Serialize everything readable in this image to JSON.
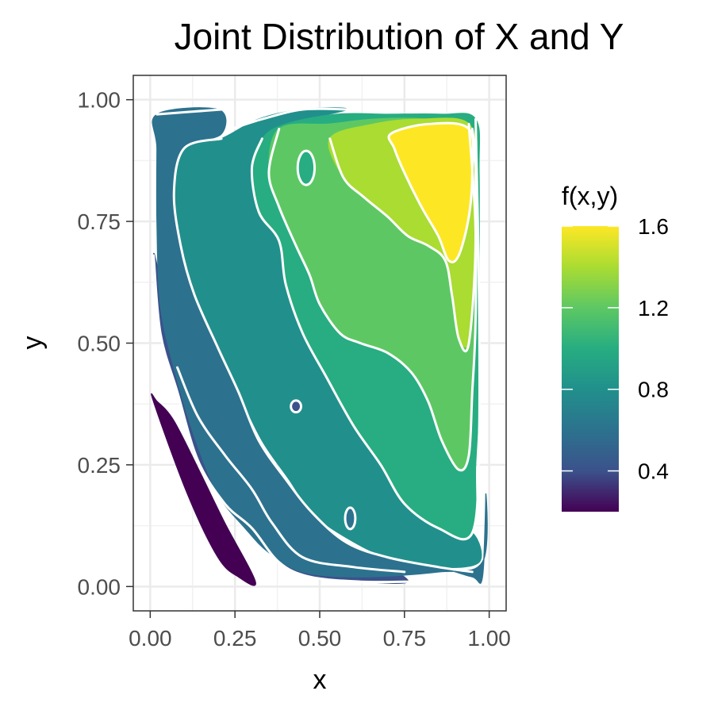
{
  "chart_data": {
    "type": "heatmap",
    "subtype": "filled-contour",
    "title": "Joint Distribution of X and Y",
    "xlabel": "x",
    "ylabel": "y",
    "xlim": [
      -0.05,
      1.05
    ],
    "ylim": [
      -0.05,
      1.05
    ],
    "x_ticks": [
      0.0,
      0.25,
      0.5,
      0.75,
      1.0
    ],
    "x_tick_labels": [
      "0.00",
      "0.25",
      "0.50",
      "0.75",
      "1.00"
    ],
    "y_ticks": [
      0.0,
      0.25,
      0.5,
      0.75,
      1.0
    ],
    "y_tick_labels": [
      "0.00",
      "0.25",
      "0.50",
      "0.75",
      "1.00"
    ],
    "grid": true,
    "theme": "bw",
    "legend": {
      "title": "f(x,y)",
      "placement": "right",
      "range": [
        0.2,
        1.6
      ],
      "ticks": [
        0.4,
        0.8,
        1.2,
        1.6
      ],
      "tick_labels": [
        "0.4",
        "0.8",
        "1.2",
        "1.6"
      ],
      "palette": "viridis"
    },
    "levels": [
      0.2,
      0.4,
      0.6,
      0.8,
      1.0,
      1.2,
      1.4,
      1.6
    ],
    "level_colors": [
      "#440154",
      "#3b528b",
      "#2c728e",
      "#21908c",
      "#27ad81",
      "#5dc863",
      "#aadc32",
      "#fde725"
    ],
    "bands": [
      {
        "level": 0.2,
        "color": "#440154",
        "outline": [
          [
            0.01,
            0.38
          ],
          [
            0.11,
            0.19
          ],
          [
            0.2,
            0.06
          ],
          [
            0.26,
            0.02
          ],
          [
            0.31,
            0.01
          ],
          [
            0.22,
            0.13
          ],
          [
            0.15,
            0.23
          ],
          [
            0.07,
            0.34
          ],
          [
            0.02,
            0.38
          ]
        ]
      },
      {
        "level": 0.4,
        "color": "#3b528b",
        "outline": [
          [
            0.01,
            0.68
          ],
          [
            0.03,
            0.52
          ],
          [
            0.08,
            0.4
          ],
          [
            0.14,
            0.26
          ],
          [
            0.22,
            0.17
          ],
          [
            0.3,
            0.12
          ],
          [
            0.38,
            0.05
          ],
          [
            0.47,
            0.02
          ],
          [
            0.62,
            0.01
          ],
          [
            0.76,
            0.01
          ],
          [
            0.66,
            0.05
          ],
          [
            0.52,
            0.07
          ],
          [
            0.42,
            0.11
          ],
          [
            0.35,
            0.17
          ],
          [
            0.27,
            0.24
          ],
          [
            0.19,
            0.35
          ],
          [
            0.12,
            0.46
          ],
          [
            0.06,
            0.56
          ],
          [
            0.03,
            0.63
          ]
        ]
      },
      {
        "level": 0.6,
        "color": "#2c728e",
        "outline": [
          [
            0.02,
            0.97
          ],
          [
            0.2,
            0.98
          ],
          [
            0.21,
            0.93
          ],
          [
            0.1,
            0.9
          ],
          [
            0.07,
            0.81
          ],
          [
            0.09,
            0.7
          ],
          [
            0.13,
            0.6
          ],
          [
            0.2,
            0.49
          ],
          [
            0.26,
            0.4
          ],
          [
            0.32,
            0.3
          ],
          [
            0.4,
            0.22
          ],
          [
            0.48,
            0.15
          ],
          [
            0.58,
            0.09
          ],
          [
            0.7,
            0.06
          ],
          [
            0.85,
            0.04
          ],
          [
            0.95,
            0.02
          ],
          [
            0.98,
            0.02
          ],
          [
            0.99,
            0.19
          ],
          [
            0.98,
            0.05
          ],
          [
            0.85,
            0.03
          ],
          [
            0.62,
            0.02
          ],
          [
            0.45,
            0.03
          ],
          [
            0.35,
            0.07
          ],
          [
            0.28,
            0.12
          ],
          [
            0.2,
            0.19
          ],
          [
            0.13,
            0.31
          ],
          [
            0.07,
            0.45
          ],
          [
            0.03,
            0.58
          ],
          [
            0.02,
            0.75
          ],
          [
            0.02,
            0.9
          ]
        ]
      },
      {
        "level": 0.8,
        "color": "#21908c",
        "outline": [
          [
            0.21,
            0.92
          ],
          [
            0.32,
            0.96
          ],
          [
            0.45,
            0.98
          ],
          [
            0.58,
            0.98
          ],
          [
            0.4,
            0.95
          ],
          [
            0.33,
            0.92
          ],
          [
            0.3,
            0.86
          ],
          [
            0.32,
            0.77
          ],
          [
            0.38,
            0.71
          ],
          [
            0.4,
            0.62
          ],
          [
            0.45,
            0.52
          ],
          [
            0.52,
            0.43
          ],
          [
            0.6,
            0.33
          ],
          [
            0.68,
            0.25
          ],
          [
            0.75,
            0.17
          ],
          [
            0.85,
            0.12
          ],
          [
            0.95,
            0.11
          ],
          [
            0.97,
            0.05
          ],
          [
            0.85,
            0.04
          ],
          [
            0.7,
            0.06
          ],
          [
            0.58,
            0.1
          ],
          [
            0.48,
            0.15
          ],
          [
            0.41,
            0.22
          ],
          [
            0.33,
            0.3
          ],
          [
            0.26,
            0.4
          ],
          [
            0.2,
            0.49
          ],
          [
            0.13,
            0.6
          ],
          [
            0.09,
            0.7
          ],
          [
            0.07,
            0.81
          ],
          [
            0.1,
            0.9
          ]
        ]
      },
      {
        "level": 1.0,
        "color": "#27ad81",
        "outline": [
          [
            0.33,
            0.92
          ],
          [
            0.4,
            0.95
          ],
          [
            0.55,
            0.97
          ],
          [
            0.7,
            0.97
          ],
          [
            0.86,
            0.97
          ],
          [
            0.96,
            0.96
          ],
          [
            0.97,
            0.85
          ],
          [
            0.97,
            0.6
          ],
          [
            0.97,
            0.4
          ],
          [
            0.96,
            0.25
          ],
          [
            0.95,
            0.11
          ],
          [
            0.85,
            0.12
          ],
          [
            0.75,
            0.17
          ],
          [
            0.68,
            0.25
          ],
          [
            0.6,
            0.33
          ],
          [
            0.52,
            0.43
          ],
          [
            0.45,
            0.52
          ],
          [
            0.4,
            0.62
          ],
          [
            0.38,
            0.71
          ],
          [
            0.32,
            0.77
          ],
          [
            0.3,
            0.86
          ]
        ]
      },
      {
        "level": 1.2,
        "color": "#5dc863",
        "outline": [
          [
            0.38,
            0.94
          ],
          [
            0.53,
            0.95
          ],
          [
            0.66,
            0.96
          ],
          [
            0.81,
            0.96
          ],
          [
            0.95,
            0.94
          ],
          [
            0.96,
            0.85
          ],
          [
            0.96,
            0.7
          ],
          [
            0.96,
            0.55
          ],
          [
            0.95,
            0.4
          ],
          [
            0.94,
            0.27
          ],
          [
            0.91,
            0.24
          ],
          [
            0.86,
            0.3
          ],
          [
            0.82,
            0.38
          ],
          [
            0.77,
            0.44
          ],
          [
            0.7,
            0.48
          ],
          [
            0.62,
            0.5
          ],
          [
            0.56,
            0.52
          ],
          [
            0.5,
            0.58
          ],
          [
            0.47,
            0.64
          ],
          [
            0.43,
            0.7
          ],
          [
            0.38,
            0.78
          ],
          [
            0.35,
            0.85
          ]
        ]
      },
      {
        "level": 1.4,
        "color": "#aadc32",
        "outline": [
          [
            0.53,
            0.92
          ],
          [
            0.66,
            0.95
          ],
          [
            0.8,
            0.96
          ],
          [
            0.94,
            0.95
          ],
          [
            0.96,
            0.85
          ],
          [
            0.96,
            0.72
          ],
          [
            0.95,
            0.6
          ],
          [
            0.94,
            0.5
          ],
          [
            0.91,
            0.51
          ],
          [
            0.89,
            0.6
          ],
          [
            0.87,
            0.67
          ],
          [
            0.82,
            0.7
          ],
          [
            0.76,
            0.72
          ],
          [
            0.7,
            0.76
          ],
          [
            0.63,
            0.8
          ],
          [
            0.57,
            0.84
          ]
        ]
      },
      {
        "level": 1.6,
        "color": "#fde725",
        "outline": [
          [
            0.71,
            0.93
          ],
          [
            0.82,
            0.95
          ],
          [
            0.94,
            0.94
          ],
          [
            0.95,
            0.85
          ],
          [
            0.94,
            0.76
          ],
          [
            0.91,
            0.68
          ],
          [
            0.88,
            0.67
          ],
          [
            0.85,
            0.72
          ],
          [
            0.8,
            0.78
          ],
          [
            0.75,
            0.85
          ],
          [
            0.72,
            0.9
          ]
        ]
      }
    ],
    "contour_lines": [
      {
        "level": 0.4,
        "points": [
          [
            0.01,
            0.68
          ],
          [
            0.03,
            0.52
          ],
          [
            0.08,
            0.4
          ],
          [
            0.14,
            0.26
          ],
          [
            0.22,
            0.17
          ],
          [
            0.3,
            0.12
          ],
          [
            0.38,
            0.05
          ],
          [
            0.47,
            0.02
          ],
          [
            0.62,
            0.01
          ],
          [
            0.76,
            0.01
          ]
        ]
      },
      {
        "level": 0.6,
        "points": [
          [
            0.02,
            0.97
          ],
          [
            0.21,
            0.98
          ]
        ]
      },
      {
        "level": 0.6,
        "points": [
          [
            0.08,
            0.45
          ],
          [
            0.14,
            0.35
          ],
          [
            0.22,
            0.27
          ],
          [
            0.3,
            0.2
          ],
          [
            0.36,
            0.13
          ],
          [
            0.45,
            0.06
          ],
          [
            0.6,
            0.04
          ],
          [
            0.75,
            0.03
          ]
        ]
      },
      {
        "level": 0.8,
        "points": [
          [
            0.21,
            0.92
          ],
          [
            0.1,
            0.9
          ],
          [
            0.07,
            0.81
          ],
          [
            0.09,
            0.7
          ],
          [
            0.13,
            0.6
          ],
          [
            0.2,
            0.49
          ],
          [
            0.26,
            0.4
          ],
          [
            0.32,
            0.3
          ],
          [
            0.4,
            0.22
          ],
          [
            0.48,
            0.15
          ],
          [
            0.58,
            0.09
          ],
          [
            0.7,
            0.06
          ],
          [
            0.85,
            0.04
          ],
          [
            0.95,
            0.03
          ]
        ]
      },
      {
        "level": 0.8,
        "points": [
          [
            0.24,
            0.94
          ],
          [
            0.33,
            0.96
          ],
          [
            0.45,
            0.98
          ],
          [
            0.58,
            0.98
          ]
        ]
      },
      {
        "level": 1.0,
        "points": [
          [
            0.33,
            0.92
          ],
          [
            0.3,
            0.86
          ],
          [
            0.32,
            0.77
          ],
          [
            0.38,
            0.71
          ],
          [
            0.4,
            0.62
          ],
          [
            0.45,
            0.52
          ],
          [
            0.52,
            0.43
          ],
          [
            0.6,
            0.33
          ],
          [
            0.68,
            0.25
          ],
          [
            0.75,
            0.17
          ],
          [
            0.85,
            0.12
          ],
          [
            0.95,
            0.11
          ],
          [
            0.97,
            0.3
          ],
          [
            0.97,
            0.6
          ],
          [
            0.96,
            0.96
          ]
        ]
      },
      {
        "level": 1.2,
        "points": [
          [
            0.38,
            0.94
          ],
          [
            0.35,
            0.85
          ],
          [
            0.38,
            0.78
          ],
          [
            0.43,
            0.7
          ],
          [
            0.47,
            0.64
          ],
          [
            0.5,
            0.58
          ],
          [
            0.56,
            0.52
          ],
          [
            0.62,
            0.5
          ],
          [
            0.7,
            0.48
          ],
          [
            0.77,
            0.44
          ],
          [
            0.82,
            0.38
          ],
          [
            0.86,
            0.3
          ],
          [
            0.91,
            0.24
          ],
          [
            0.94,
            0.27
          ],
          [
            0.95,
            0.4
          ],
          [
            0.96,
            0.55
          ],
          [
            0.96,
            0.85
          ],
          [
            0.95,
            0.94
          ]
        ]
      },
      {
        "level": 1.4,
        "points": [
          [
            0.53,
            0.92
          ],
          [
            0.57,
            0.84
          ],
          [
            0.63,
            0.8
          ],
          [
            0.7,
            0.76
          ],
          [
            0.76,
            0.72
          ],
          [
            0.82,
            0.7
          ],
          [
            0.87,
            0.67
          ],
          [
            0.89,
            0.6
          ],
          [
            0.91,
            0.51
          ],
          [
            0.94,
            0.5
          ],
          [
            0.96,
            0.72
          ],
          [
            0.94,
            0.95
          ]
        ]
      },
      {
        "level": 1.6,
        "points": [
          [
            0.71,
            0.93
          ],
          [
            0.72,
            0.9
          ],
          [
            0.75,
            0.85
          ],
          [
            0.8,
            0.78
          ],
          [
            0.85,
            0.72
          ],
          [
            0.88,
            0.67
          ],
          [
            0.91,
            0.68
          ],
          [
            0.94,
            0.76
          ],
          [
            0.95,
            0.85
          ],
          [
            0.94,
            0.94
          ],
          [
            0.82,
            0.95
          ],
          [
            0.71,
            0.93
          ]
        ]
      }
    ],
    "islands": [
      {
        "x": 0.46,
        "y": 0.86,
        "rx": 0.025,
        "ry": 0.035,
        "color": "#27ad81"
      },
      {
        "x": 0.43,
        "y": 0.37,
        "rx": 0.015,
        "ry": 0.012,
        "color": "#3b528b"
      },
      {
        "x": 0.59,
        "y": 0.14,
        "rx": 0.015,
        "ry": 0.022,
        "color": "#2c728e"
      }
    ]
  }
}
